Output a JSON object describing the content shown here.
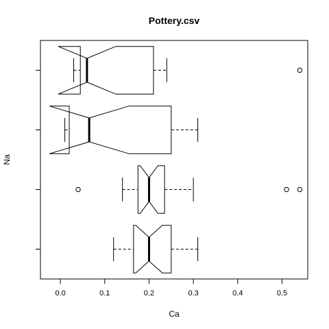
{
  "chart_data": {
    "type": "boxplot",
    "title": "Pottery.csv",
    "xlabel": "Ca",
    "ylabel": "Na",
    "horizontal": true,
    "notched": true,
    "xlim": [
      -0.045,
      0.558
    ],
    "x_ticks": [
      0.0,
      0.1,
      0.2,
      0.3,
      0.4,
      0.5
    ],
    "x_tick_labels": [
      "0.0",
      "0.1",
      "0.2",
      "0.3",
      "0.4",
      "0.5"
    ],
    "y_tick_labels": [
      "",
      "",
      "",
      ""
    ],
    "boxes": [
      {
        "whisker_low": 0.12,
        "q1": 0.165,
        "median": 0.2,
        "q3": 0.25,
        "whisker_high": 0.31,
        "notch_low": 0.17,
        "notch_high": 0.23,
        "outliers": []
      },
      {
        "whisker_low": 0.14,
        "q1": 0.175,
        "median": 0.2,
        "q3": 0.235,
        "whisker_high": 0.3,
        "notch_low": 0.18,
        "notch_high": 0.22,
        "outliers": [
          0.04,
          0.51,
          0.54
        ]
      },
      {
        "whisker_low": 0.01,
        "q1": 0.02,
        "median": 0.065,
        "q3": 0.25,
        "whisker_high": 0.31,
        "notch_low": -0.025,
        "notch_high": 0.155,
        "outliers": []
      },
      {
        "whisker_low": 0.03,
        "q1": 0.045,
        "median": 0.06,
        "q3": 0.21,
        "whisker_high": 0.24,
        "notch_low": -0.005,
        "notch_high": 0.125,
        "outliers": [
          0.54
        ]
      }
    ]
  }
}
